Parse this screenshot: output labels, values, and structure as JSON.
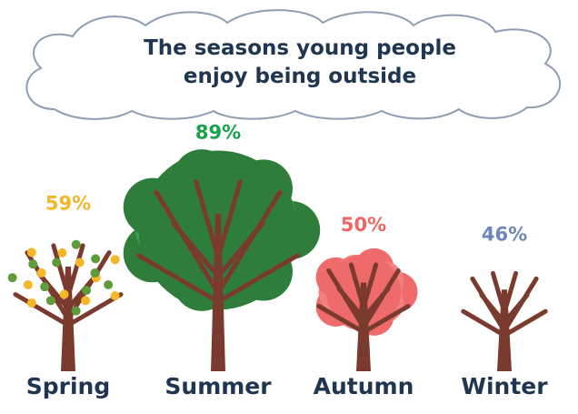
{
  "chart_data": {
    "type": "pictograph",
    "title": "The seasons young people enjoy being outside",
    "categories": [
      "Spring",
      "Summer",
      "Autumn",
      "Winter"
    ],
    "values": [
      59,
      89,
      50,
      46
    ],
    "value_labels": [
      "59%",
      "89%",
      "50%",
      "46%"
    ],
    "colors": [
      "#f5b62a",
      "#17a34a",
      "#f06464",
      "#6f86b8"
    ]
  }
}
